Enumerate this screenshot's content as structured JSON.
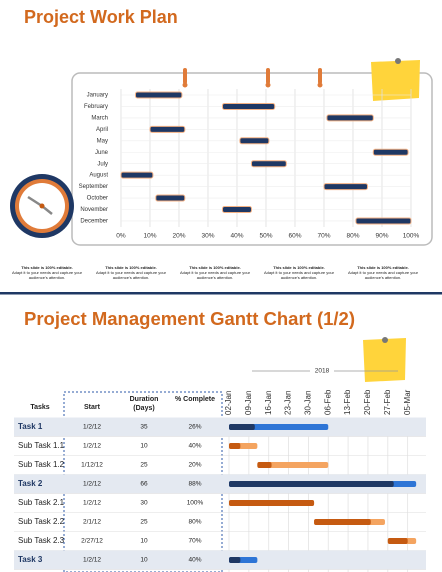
{
  "top": {
    "title": "Project Work Plan",
    "footnotes": [
      {
        "heading": "This slide is 100% editable.",
        "text": "Adapt it to your needs and capture your audience's attention."
      },
      {
        "heading": "This slide is 100% editable.",
        "text": "Adapt it to your needs and capture your audience's attention."
      },
      {
        "heading": "This slide is 100% editable.",
        "text": "Adapt it to your needs and capture your audience's attention."
      },
      {
        "heading": "This slide is 100% editable.",
        "text": "Adapt it to your needs and capture your audience's attention."
      },
      {
        "heading": "This slide is 100% editable.",
        "text": "Adapt it to your needs and capture your audience's attention."
      }
    ]
  },
  "chart_data": [
    {
      "type": "plan",
      "categories": [
        "January",
        "February",
        "March",
        "April",
        "May",
        "June",
        "July",
        "August",
        "September",
        "October",
        "November",
        "December"
      ],
      "starts": [
        5,
        35,
        71,
        10,
        41,
        87,
        45,
        0,
        70,
        12,
        35,
        81
      ],
      "ends": [
        21,
        53,
        87,
        22,
        51,
        99,
        57,
        11,
        85,
        22,
        45,
        100
      ],
      "xlim": [
        0,
        100
      ],
      "xticks": [
        {
          "value": 0,
          "label": "0%"
        },
        {
          "value": 10,
          "label": "10%"
        },
        {
          "value": 20,
          "label": "20%"
        },
        {
          "value": 30,
          "label": "30%"
        },
        {
          "value": 40,
          "label": "40%"
        },
        {
          "value": 50,
          "label": "50%"
        },
        {
          "value": 60,
          "label": "60%"
        },
        {
          "value": 70,
          "label": "70%"
        },
        {
          "value": 80,
          "label": "80%"
        },
        {
          "value": 90,
          "label": "90%"
        },
        {
          "value": 100,
          "label": "100%"
        }
      ],
      "color": "#1f3864",
      "edge_color": "#f4b183",
      "grid": true
    },
    {
      "type": "gantt",
      "title": "Project Management Gantt Chart (1/2)",
      "year_label": "2018",
      "columns": [
        "Tasks",
        "Start",
        "Duration (Days)",
        "% Complete"
      ],
      "categories": [
        "Task 1",
        "Sub Task 1.1",
        "Sub Task 1.2",
        "Task 2",
        "Sub Task 2.1",
        "Sub Task 2.2",
        "Sub Task 2.3",
        "Task 3"
      ],
      "summary": [
        true,
        false,
        false,
        true,
        false,
        false,
        false,
        true
      ],
      "start_labels": [
        "1/2/12",
        "1/2/12",
        "1/12/12",
        "1/2/12",
        "1/2/12",
        "2/1/12",
        "2/27/12",
        "1/2/12"
      ],
      "start_days": [
        0,
        0,
        10,
        0,
        0,
        30,
        56,
        0
      ],
      "durations": [
        35,
        10,
        25,
        66,
        30,
        25,
        10,
        10
      ],
      "complete": [
        26,
        40,
        20,
        88,
        100,
        80,
        70,
        40
      ],
      "complete_labels": [
        "26%",
        "40%",
        "20%",
        "88%",
        "100%",
        "80%",
        "70%",
        "40%"
      ],
      "xlim": [
        0,
        67
      ],
      "xticks": [
        {
          "value": 0,
          "label": "02-Jan"
        },
        {
          "value": 7,
          "label": "09-Jan"
        },
        {
          "value": 14,
          "label": "16-Jan"
        },
        {
          "value": 21,
          "label": "23-Jan"
        },
        {
          "value": 28,
          "label": "30-Jan"
        },
        {
          "value": 35,
          "label": "06-Feb"
        },
        {
          "value": 42,
          "label": "13-Feb"
        },
        {
          "value": 49,
          "label": "20-Feb"
        },
        {
          "value": 56,
          "label": "27-Feb"
        },
        {
          "value": 63,
          "label": "05-Mar"
        }
      ],
      "summary_colors": [
        "#1f3864",
        "#2e75d6"
      ],
      "task_colors": [
        "#c55a11",
        "#f4a460"
      ],
      "grid": true
    }
  ]
}
